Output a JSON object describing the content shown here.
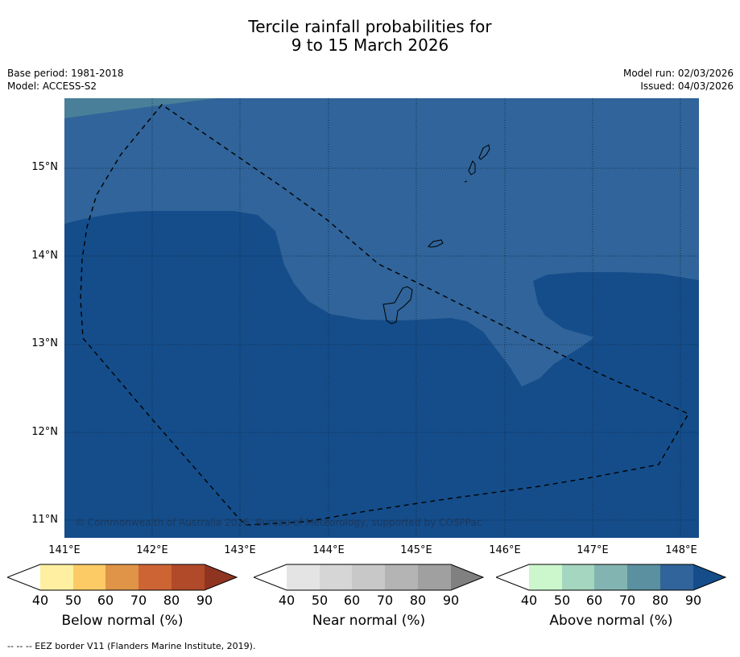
{
  "title_line1": "Tercile rainfall probabilities for",
  "title_line2": "9 to 15 March 2026",
  "meta_left": {
    "base_period": "Base period: 1981-2018",
    "model": "Model: ACCESS-S2"
  },
  "meta_right": {
    "model_run": "Model run: 02/03/2026",
    "issued": "Issued: 04/03/2026"
  },
  "map": {
    "lat_labels": [
      "15°N",
      "14°N",
      "13°N",
      "12°N",
      "11°N"
    ],
    "lon_labels": [
      "141°E",
      "142°E",
      "143°E",
      "144°E",
      "145°E",
      "146°E",
      "147°E",
      "148°E"
    ],
    "copyright": "© Commonwealth of Australia 2026, Bureau of Meteorology, supported by COSPPac",
    "colors": {
      "above_80": "#30649a",
      "above_90": "#144d8a",
      "above_70": "#4a7f99"
    }
  },
  "colorbars": [
    {
      "title": "Below normal (%)",
      "ticks": [
        "40",
        "50",
        "60",
        "70",
        "80",
        "90"
      ],
      "colors": [
        "#ffffff",
        "#fef0a0",
        "#fdcb66",
        "#e09447",
        "#cd6434",
        "#b14a29",
        "#903422"
      ]
    },
    {
      "title": "Near normal (%)",
      "ticks": [
        "40",
        "50",
        "60",
        "70",
        "80",
        "90"
      ],
      "colors": [
        "#ffffff",
        "#e4e4e4",
        "#d6d6d6",
        "#c8c8c8",
        "#b4b4b4",
        "#a0a0a0",
        "#808080"
      ]
    },
    {
      "title": "Above normal (%)",
      "ticks": [
        "40",
        "50",
        "60",
        "70",
        "80",
        "90"
      ],
      "colors": [
        "#ffffff",
        "#ccf7cc",
        "#a5d6bf",
        "#82b5b1",
        "#5a909f",
        "#30649a",
        "#144d8a"
      ]
    }
  ],
  "footer": "--  --  -- EEZ border V11 (Flanders Marine Institute, 2019)."
}
